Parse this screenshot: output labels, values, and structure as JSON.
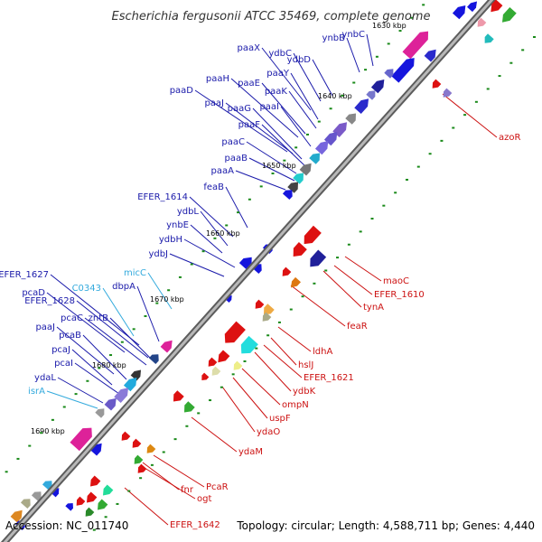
{
  "title": "Escherichia fergusonii ATCC 35469, complete genome",
  "footer": {
    "accession": "Accession: NC_011740",
    "summary": "Topology: circular; Length: 4,588,711 bp; Genes: 4,440"
  },
  "colors": {
    "left_label": "#1a1aaa",
    "right_label": "#cc1111",
    "rna_label": "#33aadd",
    "backbone": "#8a8a8a",
    "tick_mark": "#1a8a1a"
  },
  "ticks": [
    "1630 kbp",
    "1640 kbp",
    "1650 kbp",
    "1660 kbp",
    "1670 kbp",
    "1680 kbp",
    "1690 kbp"
  ],
  "left_genes": [
    "ynbB",
    "ynbC",
    "paaX",
    "ydbC",
    "ydbD",
    "paaY",
    "paaH",
    "paaE",
    "paaK",
    "paaD",
    "paaJ",
    "paaI",
    "paaG",
    "paaF",
    "paaC",
    "paaB",
    "paaA",
    "feaB",
    "EFER_1614",
    "ydbL",
    "ynbE",
    "ydbH",
    "ydbJ",
    "EFER_1627",
    "C0343",
    "micC",
    "dbpA",
    "pcaD",
    "EFER_1628",
    "pcaC",
    "zntB",
    "paaJ",
    "pcaB",
    "pcaJ",
    "pcaI",
    "ydaL",
    "isrA"
  ],
  "right_genes": [
    "azoR",
    "maoC",
    "EFER_1610",
    "tynA",
    "feaR",
    "ldhA",
    "hslJ",
    "EFER_1621",
    "ydbK",
    "ompN",
    "uspF",
    "ydaO",
    "ydaM",
    "PcaR",
    "fnr",
    "ogt",
    "EFER_1642"
  ]
}
